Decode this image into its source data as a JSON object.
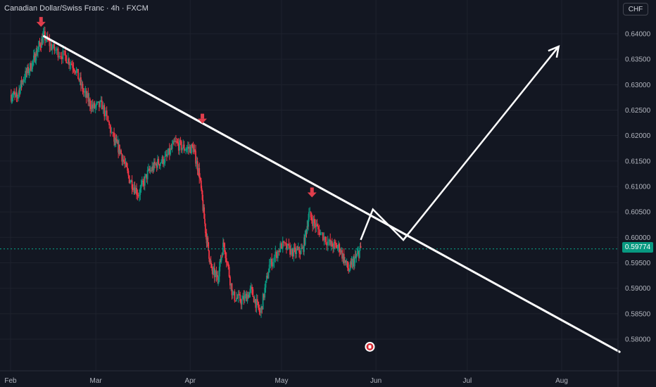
{
  "header": {
    "title": "Canadian Dollar/Swiss Franc · 4h · FXCM",
    "currency_button": "CHF"
  },
  "colors": {
    "background": "#131722",
    "grid": "#1e222d",
    "up": "#089981",
    "down": "#f23645",
    "annotation": "#ffffff",
    "marker": "#e03e4c",
    "current_price_line": "#089981"
  },
  "chart_data": {
    "type": "candlestick",
    "symbol": "CADCHF",
    "interval": "4h",
    "source": "FXCM",
    "x_axis": {
      "tick_labels": [
        "Feb",
        "Mar",
        "Apr",
        "May",
        "Jun",
        "Jul",
        "Aug"
      ]
    },
    "y_axis": {
      "unit": "CHF",
      "ticks": [
        0.64,
        0.635,
        0.63,
        0.625,
        0.62,
        0.615,
        0.61,
        0.605,
        0.6,
        0.595,
        0.59,
        0.585,
        0.58
      ],
      "tick_labels": [
        "0.64000",
        "0.63500",
        "0.63000",
        "0.62500",
        "0.62000",
        "0.61500",
        "0.61000",
        "0.60500",
        "0.60000",
        "0.59500",
        "0.59000",
        "0.58500",
        "0.58000"
      ],
      "range": [
        0.5765,
        0.6445
      ]
    },
    "current_price": 0.59774,
    "current_price_label": "0.59774",
    "price_path": [
      [
        "2025-02-01",
        0.628
      ],
      [
        "2025-02-03",
        0.6275
      ],
      [
        "2025-02-05",
        0.631
      ],
      [
        "2025-02-08",
        0.634
      ],
      [
        "2025-02-10",
        0.637
      ],
      [
        "2025-02-12",
        0.6395
      ],
      [
        "2025-02-15",
        0.637
      ],
      [
        "2025-02-19",
        0.6355
      ],
      [
        "2025-02-22",
        0.6335
      ],
      [
        "2025-02-25",
        0.6285
      ],
      [
        "2025-02-28",
        0.6255
      ],
      [
        "2025-03-03",
        0.626
      ],
      [
        "2025-03-07",
        0.619
      ],
      [
        "2025-03-09",
        0.617
      ],
      [
        "2025-03-12",
        0.6115
      ],
      [
        "2025-03-15",
        0.6085
      ],
      [
        "2025-03-18",
        0.6125
      ],
      [
        "2025-03-21",
        0.6145
      ],
      [
        "2025-03-24",
        0.6155
      ],
      [
        "2025-03-27",
        0.6185
      ],
      [
        "2025-03-30",
        0.6175
      ],
      [
        "2025-04-02",
        0.6175
      ],
      [
        "2025-04-04",
        0.6125
      ],
      [
        "2025-04-06",
        0.6015
      ],
      [
        "2025-04-08",
        0.5935
      ],
      [
        "2025-04-10",
        0.592
      ],
      [
        "2025-04-12",
        0.599
      ],
      [
        "2025-04-15",
        0.5885
      ],
      [
        "2025-04-18",
        0.5875
      ],
      [
        "2025-04-21",
        0.5895
      ],
      [
        "2025-04-24",
        0.585
      ],
      [
        "2025-04-27",
        0.5945
      ],
      [
        "2025-05-01",
        0.5985
      ],
      [
        "2025-05-05",
        0.597
      ],
      [
        "2025-05-08",
        0.5975
      ],
      [
        "2025-05-10",
        0.6045
      ],
      [
        "2025-05-13",
        0.6015
      ],
      [
        "2025-05-17",
        0.5985
      ],
      [
        "2025-05-20",
        0.598
      ],
      [
        "2025-05-23",
        0.5935
      ],
      [
        "2025-05-25",
        0.5955
      ],
      [
        "2025-05-27",
        0.5977
      ]
    ],
    "annotations": {
      "trendline": {
        "start": [
          "2025-02-12",
          0.6395
        ],
        "end": [
          "2025-08-20",
          0.5775
        ]
      },
      "projection": [
        [
          "2025-05-27",
          0.5995
        ],
        [
          "2025-05-31",
          0.6055
        ],
        [
          "2025-06-10",
          0.5995
        ],
        [
          "2025-07-31",
          0.6375
        ]
      ],
      "top_markers": [
        [
          "2025-02-11",
          0.6415
        ],
        [
          "2025-04-05",
          0.6225
        ],
        [
          "2025-05-11",
          0.608
        ]
      ],
      "event_icon": [
        "2025-05-30",
        0.5785
      ]
    }
  }
}
